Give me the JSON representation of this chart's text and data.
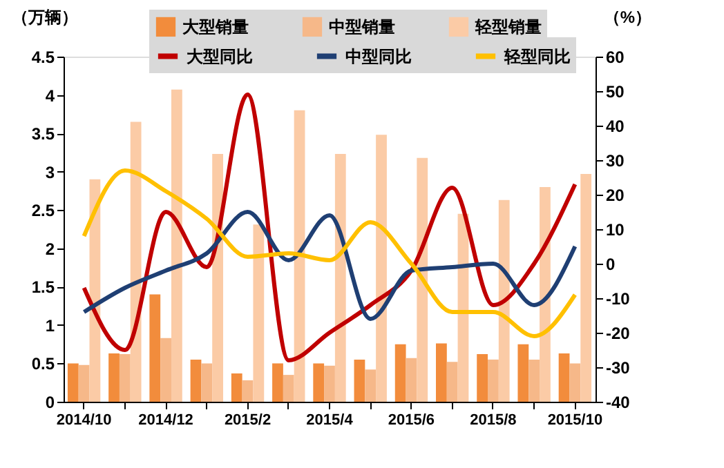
{
  "chart_data": {
    "type": "bar",
    "ylabel": "（万辆）",
    "y2label": "（%）",
    "categories": [
      "2014/10",
      null,
      "2014/12",
      null,
      "2015/2",
      null,
      "2015/4",
      null,
      "2015/6",
      null,
      "2015/8",
      null,
      "2015/10"
    ],
    "ylim": [
      0,
      4.5
    ],
    "yticks": [
      0,
      0.5,
      1,
      1.5,
      2,
      2.5,
      3,
      3.5,
      4,
      4.5
    ],
    "y2lim": [
      -40,
      60
    ],
    "y2ticks": [
      -40,
      -30,
      -20,
      -10,
      0,
      10,
      20,
      30,
      40,
      50,
      60
    ],
    "grid": false,
    "legend": "top",
    "series": [
      {
        "name": "大型销量",
        "color": "#f28c3c",
        "values": [
          0.5,
          0.63,
          1.4,
          0.55,
          0.37,
          0.5,
          0.5,
          0.55,
          0.75,
          0.76,
          0.62,
          0.75,
          0.63
        ]
      },
      {
        "name": "中型销量",
        "color": "#f6b889",
        "values": [
          0.48,
          0.62,
          0.83,
          0.5,
          0.28,
          0.35,
          0.47,
          0.42,
          0.57,
          0.52,
          0.55,
          0.55,
          0.5
        ]
      },
      {
        "name": "轻型销量",
        "color": "#fbcba6",
        "values": [
          2.9,
          3.65,
          4.07,
          3.23,
          2.31,
          3.8,
          3.23,
          3.48,
          3.18,
          2.45,
          2.63,
          2.8,
          2.97
        ]
      },
      {
        "name": "大型同比",
        "type": "line",
        "axis": "y2",
        "color": "#c00000",
        "values": [
          -7,
          -25,
          15,
          -1,
          49,
          -28,
          -20,
          -12,
          -2,
          22,
          -12,
          0,
          23
        ]
      },
      {
        "name": "中型同比",
        "type": "line",
        "axis": "y2",
        "color": "#1f3f73",
        "values": [
          -14,
          -7,
          -2,
          3,
          15,
          1,
          14,
          -16,
          -2,
          -1,
          0,
          -12,
          5
        ]
      },
      {
        "name": "轻型同比",
        "type": "line",
        "axis": "y2",
        "color": "#ffc000",
        "values": [
          8,
          27,
          21,
          13,
          2,
          3,
          1,
          12,
          0,
          -14,
          -14,
          -21,
          -9
        ]
      }
    ]
  }
}
